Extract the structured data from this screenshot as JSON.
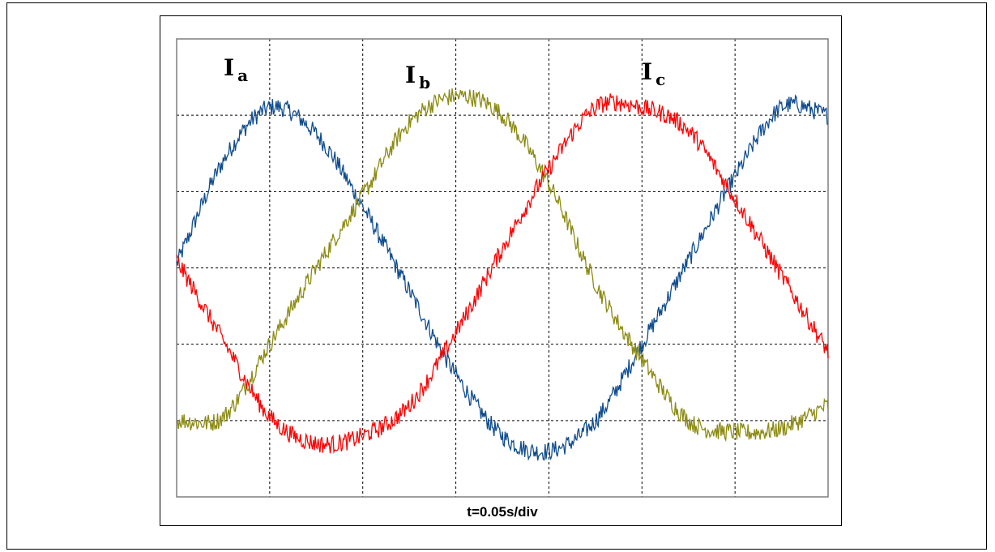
{
  "chart_data": {
    "type": "line",
    "title": "",
    "xlabel": "t=0.05s/div",
    "ylabel": "",
    "x_divisions": 7,
    "y_divisions": 6,
    "xlim": [
      0,
      7
    ],
    "ylim": [
      -3,
      3
    ],
    "grid": true,
    "legend": "none",
    "series": [
      {
        "name": "I",
        "subscript": "a",
        "color": "#0f4c8f",
        "x": [
          0,
          0.5,
          1,
          1.5,
          2,
          2.5,
          3,
          3.5,
          4,
          4.5,
          5,
          5.5,
          6,
          6.5,
          7
        ],
        "values": [
          0.05,
          1.4,
          2.1,
          1.75,
          0.8,
          -0.3,
          -1.4,
          -2.2,
          -2.4,
          -2.0,
          -1.0,
          0.1,
          1.2,
          2.1,
          2.0
        ]
      },
      {
        "name": "I",
        "subscript": "b",
        "color": "#8c8b12",
        "x": [
          0,
          0.5,
          1,
          1.5,
          2,
          2.5,
          3,
          3.5,
          4,
          4.5,
          5,
          5.5,
          6,
          6.5,
          7
        ],
        "values": [
          -2.0,
          -1.95,
          -1.0,
          0.0,
          0.95,
          1.9,
          2.25,
          2.0,
          1.1,
          -0.2,
          -1.2,
          -2.0,
          -2.15,
          -2.1,
          -1.8
        ]
      },
      {
        "name": "I",
        "subscript": "c",
        "color": "#ff0000",
        "x": [
          0,
          0.5,
          1,
          1.5,
          2,
          2.5,
          3,
          3.5,
          4,
          4.5,
          5,
          5.5,
          6,
          6.5,
          7
        ],
        "values": [
          0.1,
          -0.95,
          -1.95,
          -2.3,
          -2.2,
          -1.8,
          -0.85,
          0.25,
          1.3,
          2.1,
          2.1,
          1.8,
          0.9,
          -0.1,
          -1.1
        ]
      }
    ]
  }
}
